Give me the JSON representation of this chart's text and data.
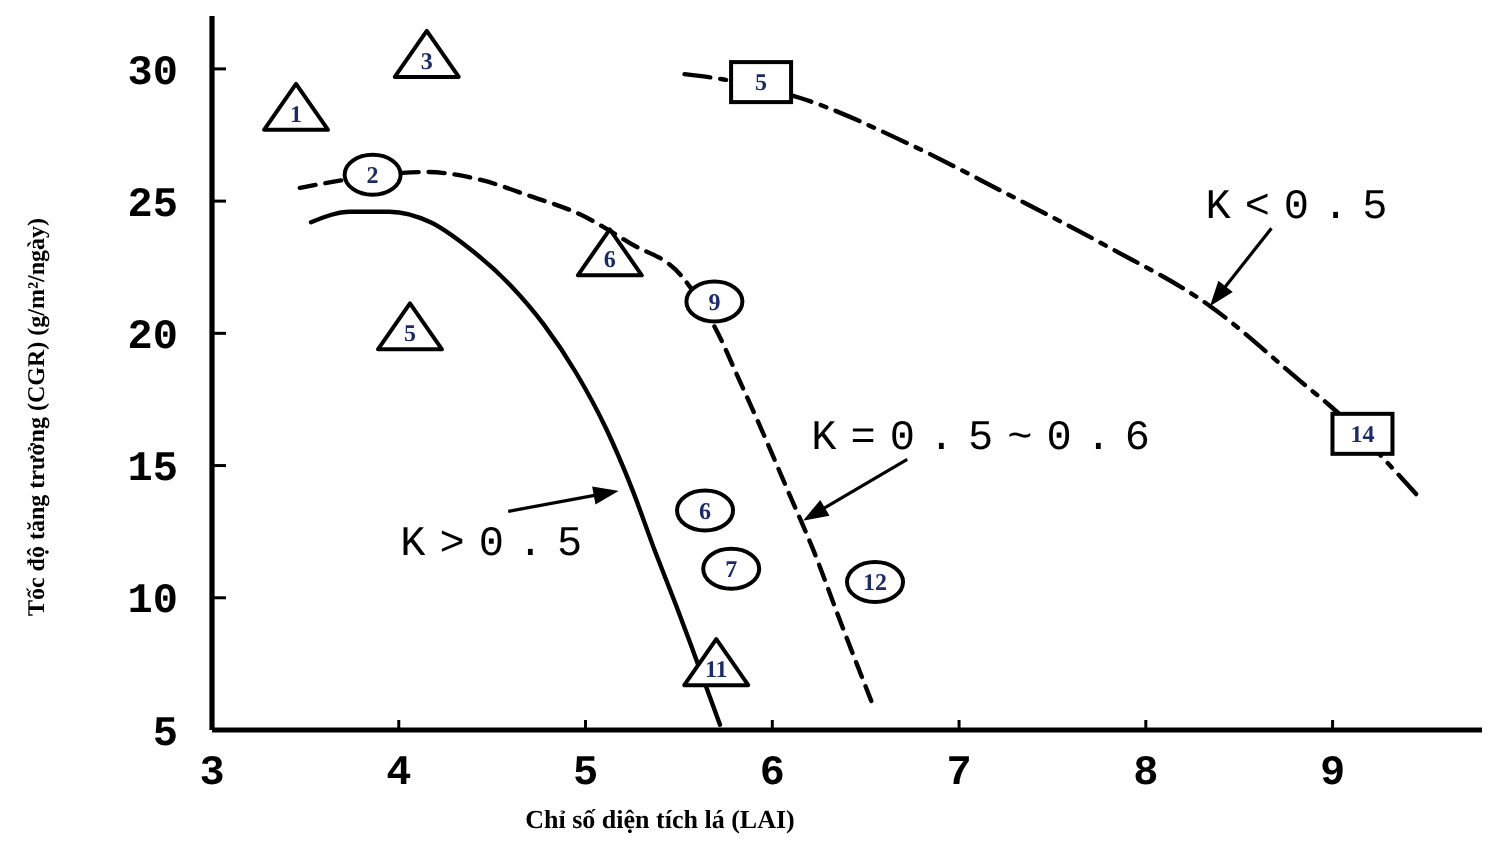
{
  "chart_data": {
    "type": "scatter",
    "xlabel": "Chỉ số diện tích lá (LAI)",
    "ylabel": "Tốc độ tăng trưởng (CGR) (g/m²/ngày)",
    "xlim": [
      3,
      9.8
    ],
    "ylim": [
      5,
      32
    ],
    "xticks": [
      3,
      4,
      5,
      6,
      7,
      8,
      9
    ],
    "yticks": [
      5,
      10,
      15,
      20,
      25,
      30
    ],
    "series": [
      {
        "type": "line",
        "name": "K>0.5",
        "color": "#000000",
        "line_style": "solid",
        "x": [
          3.53,
          3.74,
          3.95,
          4.17,
          4.38,
          4.6,
          4.78,
          4.95,
          5.11,
          5.25,
          5.37,
          5.48,
          5.56,
          5.72
        ],
        "values": [
          24.2,
          24.6,
          24.6,
          24.2,
          23.2,
          21.8,
          20.3,
          18.5,
          16.4,
          14.1,
          11.8,
          9.8,
          8.3,
          5.2
        ]
      },
      {
        "type": "line",
        "name": "K=0.5~0.6",
        "color": "#000000",
        "line_style": "dashed",
        "x": [
          3.47,
          4.15,
          4.44,
          4.7,
          4.97,
          5.24,
          5.51,
          5.73,
          5.8,
          5.94,
          6.08,
          6.22,
          6.37,
          6.53
        ],
        "values": [
          25.5,
          26.1,
          25.8,
          25.2,
          24.5,
          23.4,
          22.2,
          19.7,
          18.6,
          16.4,
          14.1,
          11.8,
          9.0,
          6.1
        ]
      },
      {
        "type": "line",
        "name": "K<0.5",
        "color": "#000000",
        "line_style": "dashdot",
        "x": [
          5.53,
          5.74,
          6.15,
          6.72,
          7.25,
          7.79,
          8.33,
          8.86,
          8.98,
          9.45
        ],
        "values": [
          29.8,
          29.6,
          28.9,
          27.2,
          25.3,
          23.3,
          21.1,
          18.0,
          17.3,
          13.9
        ]
      },
      {
        "marker": "triangle",
        "color": "#000000",
        "x": [
          3.45,
          4.15,
          4.06,
          5.13,
          5.7
        ],
        "values": [
          28.3,
          30.3,
          20.0,
          22.8,
          7.3
        ]
      },
      {
        "marker": "circle",
        "color": "#000000",
        "x": [
          3.86,
          5.69,
          5.64,
          5.78,
          6.55
        ],
        "values": [
          26.0,
          21.2,
          13.3,
          11.1,
          10.6
        ]
      },
      {
        "marker": "square",
        "color": "#000000",
        "x": [
          5.94,
          9.16
        ],
        "values": [
          29.5,
          16.2
        ]
      }
    ],
    "annotations": [
      {
        "text": "1",
        "x": 3.45,
        "y": 28.3
      },
      {
        "text": "3",
        "x": 4.15,
        "y": 30.3
      },
      {
        "text": "5",
        "x": 4.06,
        "y": 20.0
      },
      {
        "text": "6",
        "x": 5.13,
        "y": 22.8
      },
      {
        "text": "11",
        "x": 5.7,
        "y": 7.3
      },
      {
        "text": "2",
        "x": 3.86,
        "y": 26.0
      },
      {
        "text": "9",
        "x": 5.69,
        "y": 21.2
      },
      {
        "text": "6",
        "x": 5.64,
        "y": 13.3
      },
      {
        "text": "7",
        "x": 5.78,
        "y": 11.1
      },
      {
        "text": "12",
        "x": 6.55,
        "y": 10.6
      },
      {
        "text": "5",
        "x": 5.94,
        "y": 29.5
      },
      {
        "text": "14",
        "x": 9.16,
        "y": 16.2
      }
    ]
  }
}
